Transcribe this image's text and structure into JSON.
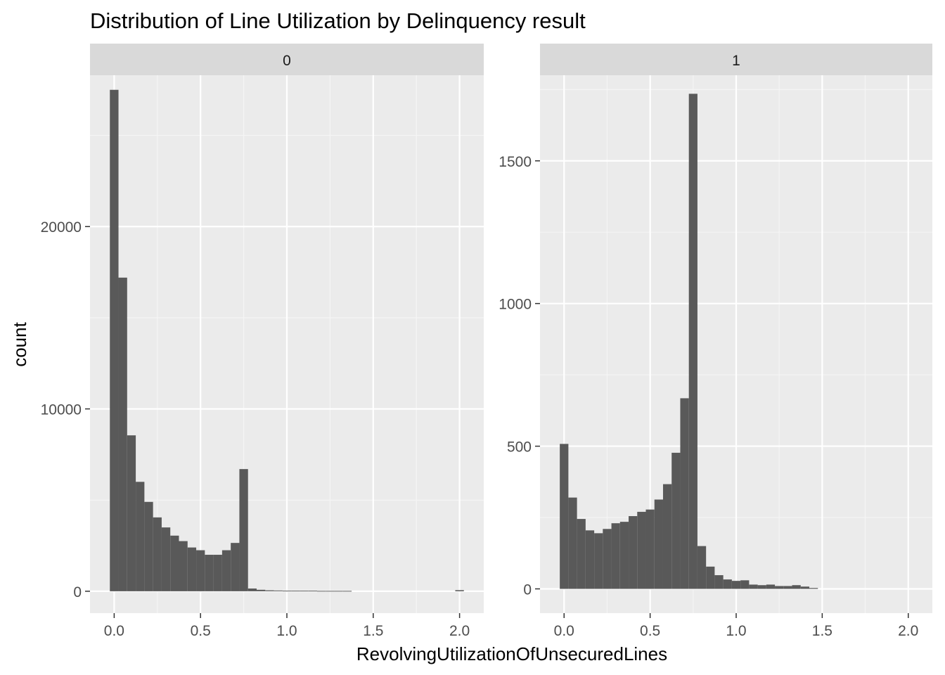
{
  "chart_data": {
    "type": "bar",
    "title": "Distribution of Line Utilization by Delinquency result",
    "xlabel": "RevolvingUtilizationOfUnsecuredLines",
    "ylabel": "count",
    "grid": true,
    "x_ticks": [
      "0.0",
      "0.5",
      "1.0",
      "1.5",
      "2.0"
    ],
    "bin_width": 0.05,
    "bin_starts": [
      -0.025,
      0.025,
      0.075,
      0.125,
      0.175,
      0.225,
      0.275,
      0.325,
      0.375,
      0.425,
      0.475,
      0.525,
      0.575,
      0.625,
      0.675,
      0.725,
      0.775,
      0.825,
      0.875,
      0.925,
      0.975,
      1.025,
      1.075,
      1.125,
      1.175,
      1.225,
      1.275,
      1.325,
      1.375,
      1.425,
      1.475,
      1.525,
      1.575,
      1.625,
      1.675,
      1.725,
      1.775,
      1.825,
      1.875,
      1.925,
      1.975
    ],
    "panels": [
      {
        "strip": "0",
        "xlim": [
          -0.14,
          2.14
        ],
        "ylim": [
          -1200,
          28300
        ],
        "y_ticks": [
          "0",
          "10000",
          "20000"
        ],
        "y_tick_values": [
          0,
          10000,
          20000
        ],
        "counts": [
          27500,
          17200,
          8550,
          6000,
          4900,
          4050,
          3500,
          3050,
          2750,
          2400,
          2250,
          2000,
          2000,
          2250,
          2650,
          6700,
          150,
          80,
          50,
          40,
          30,
          30,
          30,
          30,
          20,
          20,
          20,
          20,
          0,
          0,
          0,
          0,
          0,
          0,
          0,
          0,
          0,
          0,
          0,
          0,
          60
        ]
      },
      {
        "strip": "1",
        "xlim": [
          -0.14,
          2.14
        ],
        "ylim": [
          -85,
          1800
        ],
        "y_ticks": [
          "0",
          "500",
          "1000",
          "1500"
        ],
        "y_tick_values": [
          0,
          500,
          1000,
          1500
        ],
        "counts": [
          508,
          320,
          245,
          205,
          195,
          210,
          230,
          235,
          255,
          270,
          278,
          313,
          367,
          477,
          668,
          1735,
          150,
          78,
          48,
          33,
          28,
          30,
          15,
          13,
          15,
          10,
          10,
          13,
          8,
          3,
          0,
          0,
          0,
          0,
          0,
          0,
          0,
          0,
          0,
          0,
          0
        ]
      }
    ]
  },
  "colors": {
    "bar": "#595959",
    "panel_background": "#ebebeb",
    "grid_major": "#ffffff",
    "grid_minor": "#f5f5f5",
    "strip_background": "#d9d9d9",
    "tick": "#333333"
  }
}
